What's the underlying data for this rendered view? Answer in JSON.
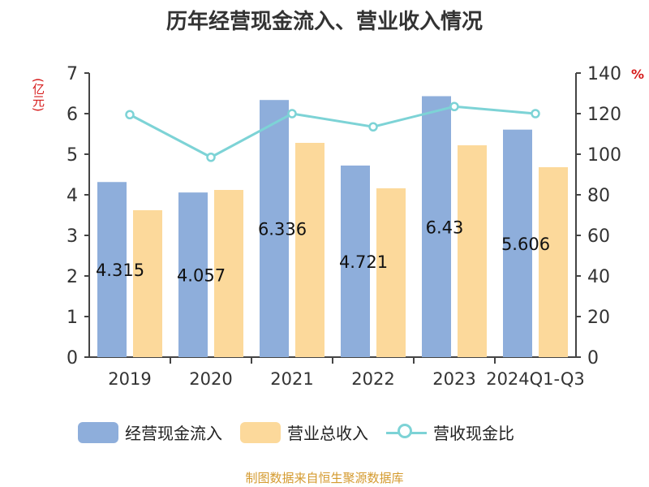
{
  "chart_data": {
    "type": "bar",
    "title": "历年经营现金流入、营业收入情况",
    "y_unit_left": "(亿元)",
    "y_unit_right": "%",
    "categories": [
      "2019",
      "2020",
      "2021",
      "2022",
      "2023",
      "2024Q1-Q3"
    ],
    "series": [
      {
        "name": "经营现金流入",
        "type": "bar",
        "axis": "left",
        "color": "#8eaedb",
        "values": [
          4.315,
          4.057,
          6.336,
          4.721,
          6.43,
          5.606
        ],
        "labels": [
          "4.315",
          "4.057",
          "6.336",
          "4.721",
          "6.43",
          "5.606"
        ]
      },
      {
        "name": "营业总收入",
        "type": "bar",
        "axis": "left",
        "color": "#fcd99b",
        "values": [
          3.62,
          4.12,
          5.28,
          4.16,
          5.22,
          4.68
        ]
      },
      {
        "name": "营收现金比",
        "type": "line",
        "axis": "right",
        "color": "#7dd3d6",
        "values": [
          119.5,
          98.5,
          120.0,
          113.5,
          123.5,
          120.0
        ]
      }
    ],
    "ylim": [
      0,
      7
    ],
    "yticks": [
      "0",
      "1",
      "2",
      "3",
      "4",
      "5",
      "6",
      "7"
    ],
    "y2lim": [
      0,
      140
    ],
    "y2ticks": [
      "0",
      "20",
      "40",
      "60",
      "80",
      "100",
      "120",
      "140"
    ],
    "legend_position": "bottom",
    "grid": false
  },
  "source_note": "制图数据来自恒生聚源数据库"
}
